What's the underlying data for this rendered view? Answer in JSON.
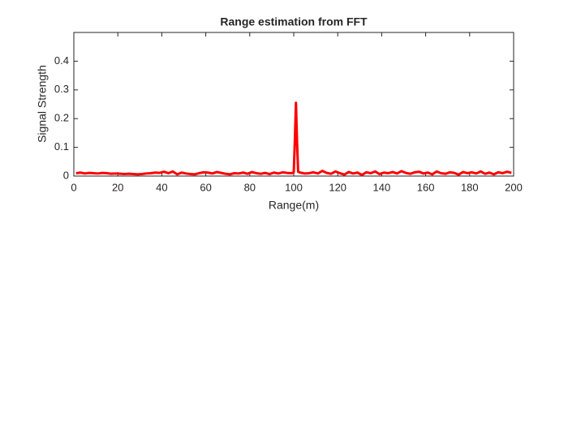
{
  "chart_data": {
    "type": "line",
    "title": "Range estimation from FFT",
    "xlabel": "Range(m)",
    "ylabel": "Signal Strength",
    "xlim": [
      0,
      200
    ],
    "ylim": [
      0,
      0.5
    ],
    "xticks": [
      0,
      20,
      40,
      60,
      80,
      100,
      120,
      140,
      160,
      180,
      200
    ],
    "yticks": [
      0,
      0.1,
      0.2,
      0.3,
      0.4
    ],
    "series": [
      {
        "color": "#ff0000",
        "x": [
          1,
          3,
          5,
          7,
          9,
          11,
          13,
          15,
          17,
          19,
          21,
          23,
          25,
          27,
          29,
          31,
          33,
          35,
          37,
          39,
          41,
          43,
          45,
          47,
          49,
          51,
          53,
          55,
          57,
          59,
          61,
          63,
          65,
          67,
          69,
          71,
          73,
          75,
          77,
          79,
          81,
          83,
          85,
          87,
          89,
          91,
          93,
          95,
          97,
          99,
          100,
          100.5,
          101,
          101.5,
          102,
          103,
          105,
          107,
          109,
          111,
          113,
          115,
          117,
          119,
          121,
          123,
          125,
          127,
          129,
          131,
          133,
          135,
          137,
          139,
          141,
          143,
          145,
          147,
          149,
          151,
          153,
          155,
          157,
          159,
          161,
          163,
          165,
          167,
          169,
          171,
          173,
          175,
          177,
          179,
          181,
          183,
          185,
          187,
          189,
          191,
          193,
          195,
          197,
          199
        ],
        "values": [
          0.01,
          0.012,
          0.009,
          0.011,
          0.01,
          0.009,
          0.011,
          0.01,
          0.008,
          0.009,
          0.008,
          0.007,
          0.008,
          0.007,
          0.006,
          0.007,
          0.009,
          0.01,
          0.012,
          0.011,
          0.015,
          0.01,
          0.016,
          0.006,
          0.012,
          0.009,
          0.007,
          0.006,
          0.01,
          0.013,
          0.012,
          0.009,
          0.014,
          0.011,
          0.008,
          0.006,
          0.01,
          0.009,
          0.012,
          0.008,
          0.014,
          0.01,
          0.008,
          0.011,
          0.007,
          0.012,
          0.009,
          0.013,
          0.011,
          0.01,
          0.012,
          0.12,
          0.255,
          0.12,
          0.015,
          0.012,
          0.009,
          0.01,
          0.013,
          0.009,
          0.018,
          0.011,
          0.008,
          0.016,
          0.01,
          0.005,
          0.014,
          0.009,
          0.012,
          0.004,
          0.013,
          0.01,
          0.016,
          0.007,
          0.012,
          0.01,
          0.014,
          0.009,
          0.017,
          0.011,
          0.008,
          0.013,
          0.015,
          0.009,
          0.012,
          0.006,
          0.016,
          0.01,
          0.008,
          0.013,
          0.011,
          0.005,
          0.014,
          0.01,
          0.013,
          0.009,
          0.016,
          0.008,
          0.012,
          0.006,
          0.013,
          0.01,
          0.015,
          0.011
        ]
      }
    ]
  }
}
